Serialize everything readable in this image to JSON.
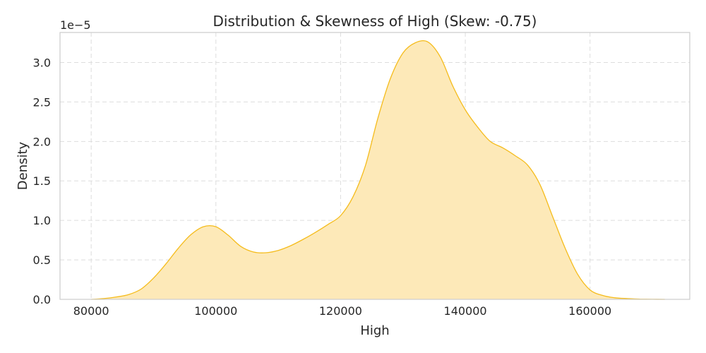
{
  "chart_data": {
    "type": "area",
    "title": "Distribution & Skewness of High (Skew: -0.75)",
    "xlabel": "High",
    "ylabel": "Density",
    "y_offset_label": "1e−5",
    "xlim": [
      75000,
      176000
    ],
    "ylim": [
      0,
      3.38
    ],
    "xticks": [
      80000,
      100000,
      120000,
      140000,
      160000
    ],
    "xtick_labels": [
      "80000",
      "100000",
      "120000",
      "140000",
      "160000"
    ],
    "yticks": [
      0,
      0.5,
      1.0,
      1.5,
      2.0,
      2.5,
      3.0
    ],
    "ytick_labels": [
      "0.0",
      "0.5",
      "1.0",
      "1.5",
      "2.0",
      "2.5",
      "3.0"
    ],
    "grid": true,
    "legend": "none",
    "colors": {
      "line": "#f5bc1c",
      "fill": "#fde9b8",
      "grid": "#dddddd",
      "spine": "#cccccc"
    },
    "series": [
      {
        "x": [
          80000,
          82000,
          84000,
          86000,
          88000,
          90000,
          92000,
          94000,
          96000,
          98000,
          100000,
          102000,
          104000,
          106000,
          108000,
          110000,
          112000,
          114000,
          116000,
          118000,
          120000,
          122000,
          124000,
          126000,
          128000,
          130000,
          132000,
          134000,
          136000,
          138000,
          140000,
          142000,
          144000,
          146000,
          148000,
          150000,
          152000,
          154000,
          156000,
          158000,
          160000,
          162000,
          164000,
          166000,
          168000,
          170000,
          172000
        ],
        "y": [
          0.0,
          0.01,
          0.03,
          0.06,
          0.13,
          0.27,
          0.45,
          0.65,
          0.82,
          0.92,
          0.92,
          0.81,
          0.67,
          0.6,
          0.59,
          0.62,
          0.68,
          0.76,
          0.85,
          0.95,
          1.06,
          1.3,
          1.7,
          2.3,
          2.8,
          3.12,
          3.25,
          3.26,
          3.07,
          2.7,
          2.4,
          2.18,
          2.0,
          1.92,
          1.82,
          1.7,
          1.45,
          1.05,
          0.65,
          0.32,
          0.12,
          0.05,
          0.02,
          0.01,
          0.003,
          0.001,
          0.0
        ]
      }
    ]
  }
}
